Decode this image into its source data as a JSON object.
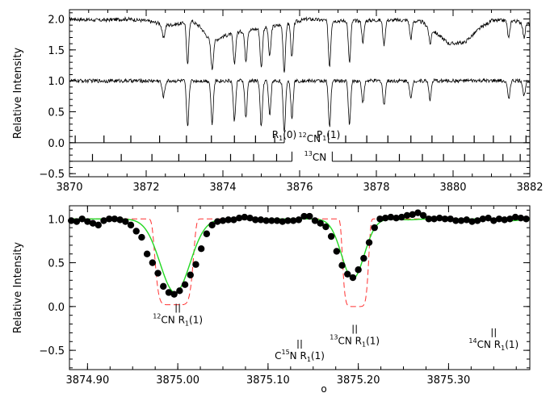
{
  "chart_data": [
    {
      "type": "line",
      "ylabel": "Relative Intensity",
      "xlim": [
        3870,
        3882
      ],
      "ylim": [
        -0.55,
        2.15
      ],
      "x_ticks": [
        3870,
        3872,
        3874,
        3876,
        3878,
        3880,
        3882
      ],
      "y_ticks": [
        -0.5,
        0.0,
        0.5,
        1.0,
        1.5,
        2.0
      ],
      "x_tick_labels": [
        "3870",
        "3872",
        "3874",
        "3876",
        "3878",
        "3880",
        "3882"
      ],
      "y_tick_labels": [
        "−0.5",
        "0.0",
        "0.5",
        "1.0",
        "1.5",
        "2.0"
      ],
      "series": [
        {
          "offset": 2.0,
          "noise": 0.03,
          "continuum": [
            [
              3870,
              1.0
            ],
            [
              3870.8,
              0.98
            ],
            [
              3871.5,
              1.0
            ],
            [
              3872.0,
              0.97
            ],
            [
              3872.6,
              0.9
            ],
            [
              3872.95,
              0.93
            ],
            [
              3873.1,
              1.0
            ],
            [
              3873.4,
              0.88
            ],
            [
              3873.7,
              0.62
            ],
            [
              3874.0,
              0.72
            ],
            [
              3874.5,
              0.8
            ],
            [
              3875.0,
              0.85
            ],
            [
              3875.5,
              0.9
            ],
            [
              3875.8,
              0.94
            ],
            [
              3876.2,
              1.0
            ],
            [
              3876.8,
              0.97
            ],
            [
              3877.5,
              0.97
            ],
            [
              3878.0,
              0.98
            ],
            [
              3878.8,
              0.98
            ],
            [
              3879.2,
              0.95
            ],
            [
              3879.6,
              0.75
            ],
            [
              3879.9,
              0.6
            ],
            [
              3880.3,
              0.62
            ],
            [
              3880.7,
              0.85
            ],
            [
              3881.0,
              0.97
            ],
            [
              3881.5,
              0.98
            ],
            [
              3882,
              0.92
            ]
          ],
          "lines": [
            [
              3872.45,
              0.25,
              0.035
            ],
            [
              3873.08,
              0.75,
              0.03
            ],
            [
              3873.72,
              0.7,
              0.03
            ],
            [
              3874.3,
              0.65,
              0.03
            ],
            [
              3874.6,
              0.6,
              0.03
            ],
            [
              3875.0,
              0.75,
              0.03
            ],
            [
              3875.22,
              0.55,
              0.03
            ],
            [
              3875.6,
              0.85,
              0.03
            ],
            [
              3875.8,
              0.6,
              0.03
            ],
            [
              3876.78,
              0.75,
              0.03
            ],
            [
              3877.3,
              0.7,
              0.03
            ],
            [
              3877.65,
              0.35,
              0.03
            ],
            [
              3878.2,
              0.4,
              0.03
            ],
            [
              3878.9,
              0.3,
              0.03
            ],
            [
              3879.4,
              0.3,
              0.03
            ],
            [
              3881.45,
              0.3,
              0.03
            ],
            [
              3881.85,
              0.25,
              0.03
            ]
          ]
        },
        {
          "offset": 1.0,
          "noise": 0.03,
          "lines": [
            [
              3872.45,
              0.25,
              0.035
            ],
            [
              3873.08,
              0.75,
              0.03
            ],
            [
              3873.72,
              0.7,
              0.03
            ],
            [
              3874.3,
              0.65,
              0.03
            ],
            [
              3874.6,
              0.6,
              0.03
            ],
            [
              3875.0,
              0.75,
              0.03
            ],
            [
              3875.22,
              0.55,
              0.03
            ],
            [
              3875.6,
              0.85,
              0.03
            ],
            [
              3875.8,
              0.6,
              0.03
            ],
            [
              3876.78,
              0.75,
              0.03
            ],
            [
              3877.3,
              0.7,
              0.03
            ],
            [
              3877.65,
              0.35,
              0.03
            ],
            [
              3878.2,
              0.4,
              0.03
            ],
            [
              3878.9,
              0.3,
              0.03
            ],
            [
              3879.4,
              0.3,
              0.03
            ],
            [
              3881.45,
              0.3,
              0.03
            ],
            [
              3881.85,
              0.25,
              0.03
            ]
          ]
        }
      ],
      "line_marker_rows": [
        {
          "label": "12CN",
          "label_main": "CN",
          "label_sup": "12",
          "y": 0.0,
          "left_end": 3875.6,
          "right_start": 3876.75,
          "left_ticks": [
            3870.15,
            3870.9,
            3871.6,
            3872.35,
            3873.05,
            3873.7,
            3874.3,
            3874.85,
            3875.35
          ],
          "right_ticks": [
            3877.2,
            3877.75,
            3878.3,
            3878.9,
            3879.45,
            3880.0,
            3880.55,
            3881.05,
            3881.5,
            3881.9
          ]
        },
        {
          "label": "13CN",
          "label_main": "CN",
          "label_sup": "13",
          "y": -0.3,
          "left_end": 3875.8,
          "right_start": 3876.85,
          "left_ticks": [
            3870.6,
            3871.35,
            3872.15,
            3872.85,
            3873.55,
            3874.2,
            3874.8,
            3875.4
          ],
          "right_ticks": [
            3877.35,
            3878.0,
            3878.6,
            3879.2,
            3879.75,
            3880.3,
            3880.8,
            3881.3,
            3881.75
          ]
        }
      ],
      "annotations": [
        {
          "main": "R",
          "sub": "1",
          "tail": "(0)",
          "x": 3875.6,
          "y": 0.13
        },
        {
          "main": "P",
          "sub": "1",
          "tail": "(1)",
          "x": 3876.75,
          "y": 0.13
        }
      ]
    },
    {
      "type": "scatter",
      "ylabel": "Relative Intensity",
      "xlim": [
        3874.88,
        3875.39
      ],
      "ylim": [
        -0.72,
        1.15
      ],
      "x_ticks": [
        3874.9,
        3875.0,
        3875.1,
        3875.2,
        3875.3
      ],
      "y_ticks": [
        -0.5,
        0.0,
        0.5,
        1.0
      ],
      "x_tick_labels": [
        "3874.90",
        "3875.00",
        "3875.10",
        "3875.20",
        "3875.30"
      ],
      "y_tick_labels": [
        "−0.5",
        "0.0",
        "0.5",
        "1.0"
      ],
      "points": [
        [
          3874.882,
          0.98
        ],
        [
          3874.888,
          0.97
        ],
        [
          3874.894,
          1.0
        ],
        [
          3874.9,
          0.97
        ],
        [
          3874.906,
          0.95
        ],
        [
          3874.912,
          0.93
        ],
        [
          3874.918,
          0.98
        ],
        [
          3874.924,
          1.0
        ],
        [
          3874.93,
          1.0
        ],
        [
          3874.936,
          0.99
        ],
        [
          3874.942,
          0.97
        ],
        [
          3874.948,
          0.93
        ],
        [
          3874.954,
          0.86
        ],
        [
          3874.96,
          0.79
        ],
        [
          3874.966,
          0.6
        ],
        [
          3874.972,
          0.5
        ],
        [
          3874.978,
          0.38
        ],
        [
          3874.984,
          0.23
        ],
        [
          3874.99,
          0.16
        ],
        [
          3874.996,
          0.14
        ],
        [
          3875.002,
          0.18
        ],
        [
          3875.008,
          0.25
        ],
        [
          3875.014,
          0.36
        ],
        [
          3875.02,
          0.48
        ],
        [
          3875.026,
          0.66
        ],
        [
          3875.032,
          0.83
        ],
        [
          3875.038,
          0.93
        ],
        [
          3875.044,
          0.97
        ],
        [
          3875.05,
          0.98
        ],
        [
          3875.056,
          0.99
        ],
        [
          3875.062,
          0.99
        ],
        [
          3875.068,
          1.01
        ],
        [
          3875.074,
          1.02
        ],
        [
          3875.08,
          1.01
        ],
        [
          3875.086,
          0.99
        ],
        [
          3875.092,
          0.99
        ],
        [
          3875.098,
          0.98
        ],
        [
          3875.104,
          0.98
        ],
        [
          3875.11,
          0.98
        ],
        [
          3875.116,
          0.97
        ],
        [
          3875.122,
          0.98
        ],
        [
          3875.128,
          0.98
        ],
        [
          3875.134,
          0.99
        ],
        [
          3875.14,
          1.03
        ],
        [
          3875.146,
          1.03
        ],
        [
          3875.152,
          0.98
        ],
        [
          3875.158,
          0.95
        ],
        [
          3875.164,
          0.91
        ],
        [
          3875.17,
          0.8
        ],
        [
          3875.176,
          0.63
        ],
        [
          3875.182,
          0.47
        ],
        [
          3875.188,
          0.37
        ],
        [
          3875.194,
          0.33
        ],
        [
          3875.2,
          0.42
        ],
        [
          3875.206,
          0.55
        ],
        [
          3875.212,
          0.73
        ],
        [
          3875.218,
          0.9
        ],
        [
          3875.224,
          1.0
        ],
        [
          3875.23,
          1.01
        ],
        [
          3875.236,
          1.02
        ],
        [
          3875.242,
          1.01
        ],
        [
          3875.248,
          1.02
        ],
        [
          3875.254,
          1.04
        ],
        [
          3875.26,
          1.05
        ],
        [
          3875.266,
          1.07
        ],
        [
          3875.272,
          1.04
        ],
        [
          3875.278,
          1.0
        ],
        [
          3875.284,
          1.0
        ],
        [
          3875.29,
          1.01
        ],
        [
          3875.296,
          1.0
        ],
        [
          3875.302,
          1.0
        ],
        [
          3875.308,
          0.98
        ],
        [
          3875.314,
          0.98
        ],
        [
          3875.32,
          0.99
        ],
        [
          3875.326,
          0.97
        ],
        [
          3875.332,
          0.98
        ],
        [
          3875.338,
          1.0
        ],
        [
          3875.344,
          1.01
        ],
        [
          3875.35,
          0.98
        ],
        [
          3875.356,
          1.0
        ],
        [
          3875.362,
          0.99
        ],
        [
          3875.368,
          1.0
        ],
        [
          3875.374,
          1.02
        ],
        [
          3875.38,
          1.01
        ],
        [
          3875.386,
          1.0
        ]
      ],
      "fit_lines": [
        [
          3874.997,
          0.84,
          0.0165
        ],
        [
          3875.194,
          0.68,
          0.0125
        ],
        [
          3875.255,
          0.01,
          0.01
        ],
        [
          3875.37,
          0.02,
          0.01
        ]
      ],
      "box_lines": [
        [
          3874.996,
          0.98,
          0.022
        ],
        [
          3875.197,
          1.0,
          0.015
        ]
      ],
      "line_labels": [
        {
          "iso": "12",
          "mol": "CN",
          "branch": "R",
          "sub": "1",
          "tail": "(1)",
          "x": 3875.0,
          "y": -0.19,
          "bars": 2
        },
        {
          "iso": "13",
          "mol": "CN",
          "branch": "R",
          "sub": "1",
          "tail": "(1)",
          "x": 3875.196,
          "y": -0.43,
          "bars": 2
        },
        {
          "iso": "",
          "mol": "C",
          "sup": "15",
          "mol2": "N",
          "branch": "R",
          "sub": "1",
          "tail": "(1)",
          "x": 3875.135,
          "y": -0.6,
          "bars": 2
        },
        {
          "iso": "14",
          "mol": "CN",
          "branch": "R",
          "sub": "1",
          "tail": "(1)",
          "x": 3875.35,
          "y": -0.47,
          "bars": 2
        }
      ],
      "xlabel_partial": "o"
    }
  ]
}
